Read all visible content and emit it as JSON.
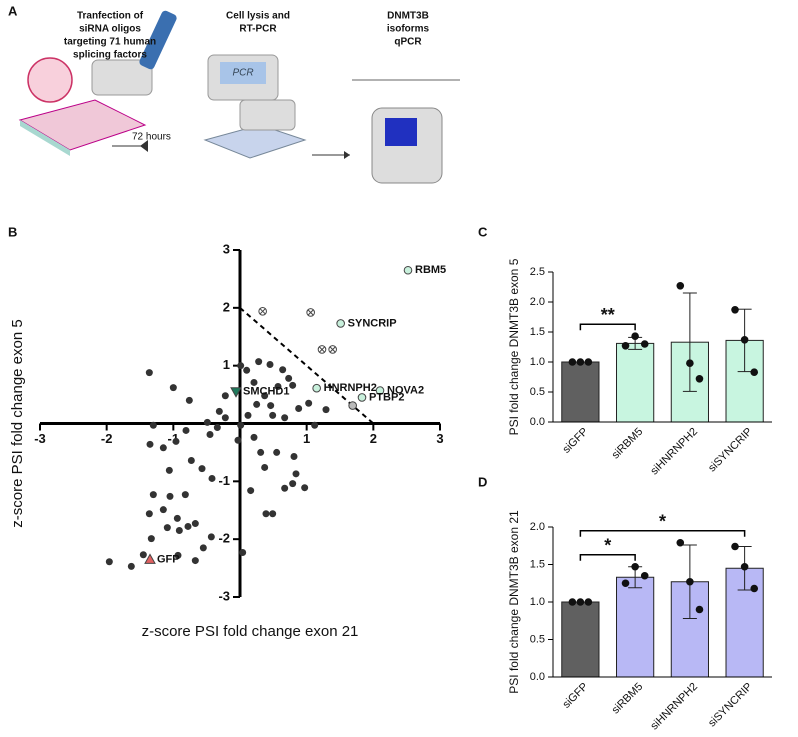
{
  "panel_labels": [
    "A",
    "B",
    "C",
    "D"
  ],
  "panel_a": {
    "step1": [
      "Tranfection of",
      "siRNA oligos",
      "targeting 71 human",
      "splicing factors"
    ],
    "duration": "72 hours",
    "step2": [
      "Cell lysis and",
      "RT-PCR"
    ],
    "machine_label": "PCR",
    "step3": [
      "DNMT3B",
      "isoforms",
      "qPCR"
    ]
  },
  "chart_data": [
    {
      "type": "scatter",
      "xlabel": "z-score PSI fold change exon 21",
      "ylabel": "z-score PSI fold change exon 5",
      "xlim": [
        -3,
        3
      ],
      "ylim": [
        -3,
        3
      ],
      "xticks": [
        -3,
        -2,
        -1,
        1,
        2,
        3
      ],
      "yticks": [
        -3,
        -2,
        -1,
        1,
        2,
        3
      ],
      "reference_line": [
        [
          0,
          2
        ],
        [
          2,
          0
        ]
      ],
      "series": [
        {
          "color": "#333333",
          "x": [
            -1.96,
            -1.63,
            -1.45,
            -1.33,
            -0.93,
            -0.67,
            -0.55,
            -0.43,
            0.04,
            -1.36,
            -1.15,
            -1.05,
            -0.82,
            -0.94,
            -1.09,
            -0.91,
            -0.78,
            -0.67,
            -1.3,
            -1.06,
            -0.73,
            -0.57,
            -0.42,
            -0.96,
            -1.3,
            -1.35,
            -0.81,
            -0.45,
            -0.31,
            -0.22,
            -0.34,
            -0.03,
            0.21,
            0.01,
            0.12,
            0.25,
            0.37,
            0.21,
            0.1,
            0.01,
            0.28,
            0.45,
            0.64,
            0.73,
            0.79,
            0.57,
            0.46,
            0.49,
            0.67,
            0.88,
            1.03,
            1.29,
            1.12,
            0.31,
            0.37,
            0.55,
            0.81,
            0.84,
            0.79,
            0.97,
            0.67,
            0.39,
            0.49,
            0.16,
            -0.22,
            -1.36,
            -0.76,
            -0.49,
            -1.0,
            -1.15
          ],
          "y": [
            -2.39,
            -2.47,
            -2.27,
            -1.99,
            -2.28,
            -2.37,
            -2.15,
            -1.96,
            -2.23,
            -1.56,
            -1.49,
            -1.26,
            -1.23,
            -1.64,
            -1.8,
            -1.85,
            -1.78,
            -1.73,
            -1.23,
            -0.81,
            -0.64,
            -0.78,
            -0.95,
            -0.31,
            -0.03,
            -0.36,
            -0.12,
            -0.19,
            0.21,
            0.48,
            -0.07,
            -0.29,
            -0.24,
            -0.03,
            0.14,
            0.33,
            0.48,
            0.71,
            0.92,
            1.0,
            1.07,
            1.02,
            0.93,
            0.78,
            0.66,
            0.64,
            0.31,
            0.14,
            0.1,
            0.26,
            0.35,
            0.24,
            -0.03,
            -0.5,
            -0.76,
            -0.5,
            -0.57,
            -0.87,
            -1.04,
            -1.11,
            -1.12,
            -1.56,
            -1.56,
            -1.16,
            0.1,
            0.88,
            0.4,
            0.02,
            0.62,
            -0.42
          ]
        }
      ],
      "points": [
        {
          "label": "RBM5",
          "x": 2.52,
          "y": 2.65,
          "marker": "circle",
          "color": "#c8f0dc"
        },
        {
          "label": "SYNCRIP",
          "x": 1.51,
          "y": 1.73,
          "marker": "circle",
          "color": "#c8f0dc"
        },
        {
          "label": "HNRNPH2",
          "x": 1.15,
          "y": 0.61,
          "marker": "circle",
          "color": "#c8f0dc"
        },
        {
          "label": "NOVA2",
          "x": 2.1,
          "y": 0.57,
          "marker": "circle",
          "color": "#c8f0dc"
        },
        {
          "label": "PTBP2",
          "x": 1.83,
          "y": 0.45,
          "marker": "circle",
          "color": "#c8f0dc"
        },
        {
          "x": 1.69,
          "y": 0.31,
          "marker": "circle",
          "color": "#bbbbbb"
        },
        {
          "label": "SMCHD1",
          "x": -0.06,
          "y": 0.55,
          "marker": "triangle",
          "color": "#1f7a5c"
        },
        {
          "label": "GFP",
          "x": -1.35,
          "y": -2.35,
          "marker": "triangle",
          "color": "#e06060"
        },
        {
          "x": 0.34,
          "y": 1.94,
          "marker": "crossed",
          "color": "#ffffff"
        },
        {
          "x": 1.06,
          "y": 1.92,
          "marker": "crossed",
          "color": "#ffffff"
        },
        {
          "x": 1.23,
          "y": 1.28,
          "marker": "crossed",
          "color": "#ffffff"
        },
        {
          "x": 1.39,
          "y": 1.28,
          "marker": "crossed",
          "color": "#ffffff"
        }
      ]
    },
    {
      "type": "bar",
      "ylabel": "PSI fold change DNMT3B exon 5",
      "categories": [
        "siGFP",
        "siRBM5",
        "siHNRNPH2",
        "siSYNCRIP"
      ],
      "values": [
        1.0,
        1.31,
        1.33,
        1.36
      ],
      "errors": [
        0,
        0.1,
        0.82,
        0.52
      ],
      "points": [
        [
          1.0,
          1.0,
          1.0
        ],
        [
          1.27,
          1.43,
          1.3
        ],
        [
          2.27,
          0.98,
          0.72
        ],
        [
          1.87,
          1.37,
          0.83
        ]
      ],
      "colors": [
        "#606060",
        "#c8f5e0",
        "#c8f5e0",
        "#c8f5e0"
      ],
      "ylim": [
        0,
        2.5
      ],
      "yticks": [
        {
          "value": 0,
          "label": "0.0"
        },
        {
          "value": 0.5,
          "label": "0.5"
        },
        {
          "value": 1,
          "label": "1.0"
        },
        {
          "value": 1.5,
          "label": "1.5"
        },
        {
          "value": 2,
          "label": "2.0"
        },
        {
          "value": 2.5,
          "label": "2.5"
        }
      ],
      "significance": [
        {
          "text": "**",
          "between": [
            "siGFP",
            "siRBM5"
          ]
        }
      ]
    },
    {
      "type": "bar",
      "ylabel": "PSI fold change DNMT3B exon 21",
      "categories": [
        "siGFP",
        "siRBM5",
        "siHNRNPH2",
        "siSYNCRIP"
      ],
      "values": [
        1.0,
        1.33,
        1.27,
        1.45
      ],
      "errors": [
        0,
        0.14,
        0.49,
        0.29
      ],
      "points": [
        [
          1.0,
          1.0,
          1.0
        ],
        [
          1.25,
          1.47,
          1.35
        ],
        [
          1.79,
          1.27,
          0.9
        ],
        [
          1.74,
          1.47,
          1.18
        ]
      ],
      "colors": [
        "#606060",
        "#b8b8f5",
        "#b8b8f5",
        "#b8b8f5"
      ],
      "ylim": [
        0,
        2.0
      ],
      "yticks": [
        {
          "value": 0,
          "label": "0.0"
        },
        {
          "value": 0.5,
          "label": "0.5"
        },
        {
          "value": 1,
          "label": "1.0"
        },
        {
          "value": 1.5,
          "label": "1.5"
        },
        {
          "value": 2,
          "label": "2.0"
        }
      ],
      "significance": [
        {
          "text": "*",
          "between": [
            "siGFP",
            "siRBM5"
          ]
        },
        {
          "text": "*",
          "between": [
            "siGFP",
            "siSYNCRIP"
          ]
        }
      ]
    }
  ]
}
